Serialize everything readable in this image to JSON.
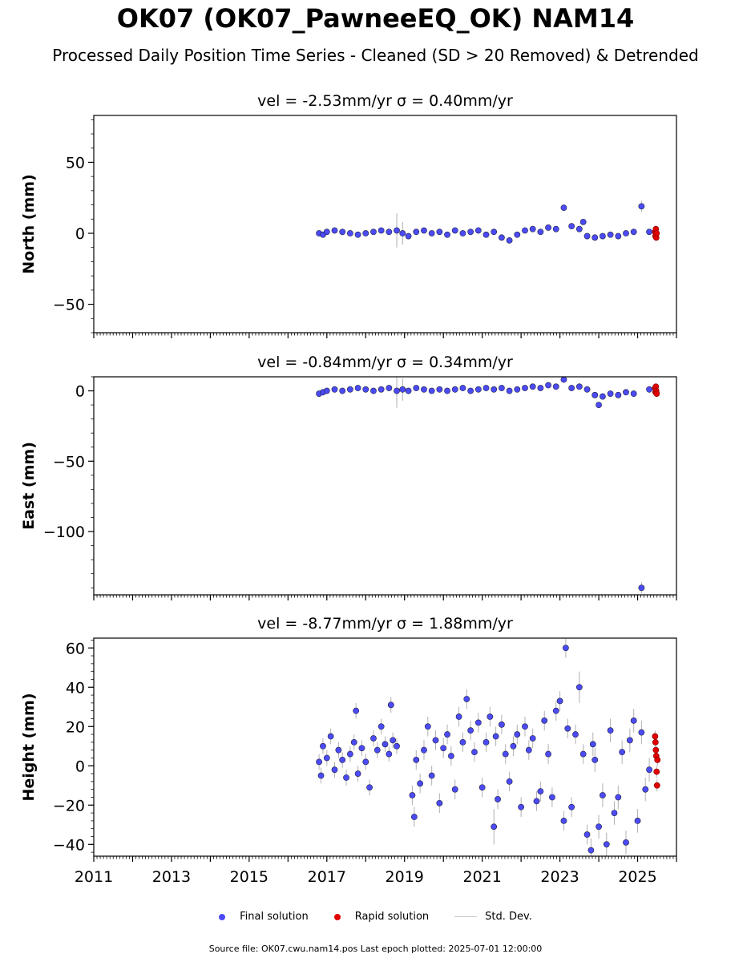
{
  "figure": {
    "title": "OK07 (OK07_PawneeEQ_OK) NAM14",
    "subtitle": "Processed Daily Position Time Series - Cleaned (SD > 20 Removed) & Detrended",
    "footer": "Source file: OK07.cwu.nam14.pos  Last epoch plotted: 2025-07-01 12:00:00"
  },
  "legend": {
    "items": [
      {
        "label": "Final solution",
        "color": "#4b4bf5",
        "kind": "dot"
      },
      {
        "label": "Rapid solution",
        "color": "#e00000",
        "kind": "dot"
      },
      {
        "label": "Std. Dev.",
        "color": "#c8c8c8",
        "kind": "line"
      }
    ]
  },
  "colors": {
    "final": "#4b4bf5",
    "final_edge": "#202040",
    "rapid": "#e00000",
    "errbar": "#b0b0b0"
  },
  "chart_data": [
    {
      "type": "scatter",
      "title": "vel = -2.53mm/yr   σ = 0.40mm/yr",
      "ylabel": "North (mm)",
      "xlim": [
        2011.0,
        2026.0
      ],
      "ylim": [
        -70,
        83
      ],
      "yticks": [
        -50,
        0,
        50
      ],
      "ytick_labels": [
        "−50",
        "0",
        "50"
      ],
      "xticks": [],
      "xtick_labels": [],
      "series": [
        {
          "name": "Final solution",
          "role": "final",
          "x": [
            2016.8,
            2016.9,
            2017.0,
            2017.2,
            2017.4,
            2017.6,
            2017.8,
            2018.0,
            2018.2,
            2018.4,
            2018.6,
            2018.8,
            2018.95,
            2019.1,
            2019.3,
            2019.5,
            2019.7,
            2019.9,
            2020.1,
            2020.3,
            2020.5,
            2020.7,
            2020.9,
            2021.1,
            2021.3,
            2021.5,
            2021.7,
            2021.9,
            2022.1,
            2022.3,
            2022.5,
            2022.7,
            2022.9,
            2023.1,
            2023.3,
            2023.5,
            2023.6,
            2023.7,
            2023.9,
            2024.1,
            2024.3,
            2024.5,
            2024.7,
            2024.9,
            2025.1,
            2025.3
          ],
          "y": [
            0,
            -1,
            1,
            2,
            1,
            0,
            -1,
            0,
            1,
            2,
            1,
            2,
            0,
            -2,
            1,
            2,
            0,
            1,
            -1,
            2,
            0,
            1,
            2,
            -1,
            1,
            -3,
            -5,
            -1,
            2,
            3,
            1,
            4,
            3,
            18,
            5,
            3,
            8,
            -2,
            -3,
            -2,
            -1,
            -2,
            0,
            1,
            19,
            1
          ],
          "err": [
            2,
            2,
            2,
            2,
            2,
            2,
            2,
            2,
            2,
            2,
            2,
            12,
            8,
            2,
            2,
            2,
            2,
            2,
            2,
            2,
            2,
            2,
            2,
            2,
            2,
            2,
            2,
            2,
            2,
            2,
            2,
            2,
            2,
            2,
            2,
            2,
            2,
            2,
            2,
            2,
            2,
            2,
            2,
            2,
            4,
            2
          ]
        },
        {
          "name": "Rapid solution",
          "role": "rapid",
          "x": [
            2025.45,
            2025.46,
            2025.47,
            2025.48,
            2025.49
          ],
          "y": [
            1,
            -2,
            3,
            -3,
            0
          ],
          "err": [
            2,
            2,
            2,
            2,
            2
          ]
        }
      ]
    },
    {
      "type": "scatter",
      "title": "vel = -0.84mm/yr   σ = 0.34mm/yr",
      "ylabel": "East (mm)",
      "xlim": [
        2011.0,
        2026.0
      ],
      "ylim": [
        -145,
        10
      ],
      "yticks": [
        -100,
        -50,
        0
      ],
      "ytick_labels": [
        "−100",
        "−50",
        "0"
      ],
      "xticks": [],
      "xtick_labels": [],
      "series": [
        {
          "name": "Final solution",
          "role": "final",
          "x": [
            2016.8,
            2016.9,
            2017.0,
            2017.2,
            2017.4,
            2017.6,
            2017.8,
            2018.0,
            2018.2,
            2018.4,
            2018.6,
            2018.8,
            2018.95,
            2019.1,
            2019.3,
            2019.5,
            2019.7,
            2019.9,
            2020.1,
            2020.3,
            2020.5,
            2020.7,
            2020.9,
            2021.1,
            2021.3,
            2021.5,
            2021.7,
            2021.9,
            2022.1,
            2022.3,
            2022.5,
            2022.7,
            2022.9,
            2023.1,
            2023.3,
            2023.5,
            2023.7,
            2023.9,
            2024.0,
            2024.1,
            2024.3,
            2024.5,
            2024.7,
            2024.9,
            2025.1,
            2025.3
          ],
          "y": [
            -2,
            -1,
            0,
            1,
            0,
            1,
            2,
            1,
            0,
            1,
            2,
            0,
            1,
            0,
            2,
            1,
            0,
            1,
            0,
            1,
            2,
            0,
            1,
            2,
            1,
            2,
            0,
            1,
            2,
            3,
            2,
            4,
            3,
            8,
            2,
            3,
            1,
            -3,
            -10,
            -4,
            -2,
            -3,
            -1,
            -2,
            -140,
            1
          ],
          "err": [
            2,
            2,
            2,
            2,
            2,
            2,
            2,
            2,
            2,
            2,
            2,
            12,
            8,
            2,
            2,
            2,
            2,
            2,
            2,
            2,
            2,
            2,
            2,
            2,
            2,
            2,
            2,
            2,
            2,
            2,
            2,
            2,
            2,
            2,
            2,
            2,
            2,
            2,
            2,
            2,
            2,
            2,
            2,
            2,
            4,
            2
          ]
        },
        {
          "name": "Rapid solution",
          "role": "rapid",
          "x": [
            2025.45,
            2025.46,
            2025.47,
            2025.48,
            2025.49
          ],
          "y": [
            2,
            -1,
            3,
            0,
            -2
          ],
          "err": [
            2,
            2,
            2,
            2,
            2
          ]
        }
      ]
    },
    {
      "type": "scatter",
      "title": "vel = -8.77mm/yr   σ = 1.88mm/yr",
      "ylabel": "Height (mm)",
      "xlim": [
        2011.0,
        2026.0
      ],
      "ylim": [
        -46,
        65
      ],
      "yticks": [
        -40,
        -20,
        0,
        20,
        40,
        60
      ],
      "ytick_labels": [
        "−40",
        "−20",
        "0",
        "20",
        "40",
        "60"
      ],
      "xticks": [
        2011,
        2013,
        2015,
        2017,
        2019,
        2021,
        2023,
        2025
      ],
      "xtick_labels": [
        "2011",
        "2013",
        "2015",
        "2017",
        "2019",
        "2021",
        "2023",
        "2025"
      ],
      "series": [
        {
          "name": "Final solution",
          "role": "final",
          "x": [
            2016.8,
            2016.85,
            2016.9,
            2017.0,
            2017.1,
            2017.2,
            2017.3,
            2017.4,
            2017.5,
            2017.6,
            2017.7,
            2017.75,
            2017.8,
            2017.9,
            2018.0,
            2018.1,
            2018.2,
            2018.3,
            2018.4,
            2018.5,
            2018.6,
            2018.65,
            2018.7,
            2018.8,
            2019.2,
            2019.25,
            2019.3,
            2019.4,
            2019.5,
            2019.6,
            2019.7,
            2019.8,
            2019.9,
            2020.0,
            2020.1,
            2020.2,
            2020.3,
            2020.4,
            2020.5,
            2020.6,
            2020.7,
            2020.8,
            2020.9,
            2021.0,
            2021.1,
            2021.2,
            2021.3,
            2021.35,
            2021.4,
            2021.5,
            2021.6,
            2021.7,
            2021.8,
            2021.9,
            2022.0,
            2022.1,
            2022.2,
            2022.3,
            2022.4,
            2022.5,
            2022.6,
            2022.7,
            2022.8,
            2022.9,
            2023.0,
            2023.1,
            2023.15,
            2023.2,
            2023.3,
            2023.4,
            2023.5,
            2023.6,
            2023.7,
            2023.8,
            2023.85,
            2023.9,
            2024.0,
            2024.1,
            2024.2,
            2024.3,
            2024.4,
            2024.5,
            2024.6,
            2024.7,
            2024.8,
            2024.9,
            2025.0,
            2025.1,
            2025.2,
            2025.3
          ],
          "y": [
            2,
            -5,
            10,
            4,
            15,
            -2,
            8,
            3,
            -6,
            6,
            12,
            28,
            -4,
            9,
            2,
            -11,
            14,
            8,
            20,
            11,
            6,
            31,
            13,
            10,
            -15,
            -26,
            3,
            -9,
            8,
            20,
            -5,
            13,
            -19,
            9,
            16,
            5,
            -12,
            25,
            12,
            34,
            18,
            7,
            22,
            -11,
            12,
            25,
            -31,
            15,
            -17,
            21,
            6,
            -8,
            10,
            16,
            -21,
            20,
            8,
            14,
            -18,
            -13,
            23,
            6,
            -16,
            28,
            33,
            -28,
            60,
            19,
            -21,
            16,
            40,
            6,
            -35,
            -43,
            11,
            3,
            -31,
            -15,
            -40,
            18,
            -24,
            -16,
            7,
            -39,
            13,
            23,
            -28,
            17,
            -12,
            -2
          ],
          "err": [
            4,
            4,
            4,
            4,
            4,
            4,
            4,
            4,
            4,
            4,
            4,
            4,
            4,
            4,
            4,
            4,
            4,
            4,
            4,
            4,
            4,
            4,
            4,
            4,
            5,
            5,
            5,
            5,
            5,
            5,
            5,
            5,
            5,
            5,
            5,
            5,
            5,
            5,
            5,
            5,
            5,
            5,
            5,
            5,
            5,
            5,
            9,
            5,
            5,
            5,
            5,
            5,
            5,
            5,
            5,
            5,
            5,
            5,
            5,
            5,
            5,
            5,
            5,
            5,
            5,
            5,
            5,
            5,
            5,
            5,
            8,
            5,
            5,
            6,
            6,
            6,
            6,
            6,
            6,
            6,
            6,
            6,
            6,
            6,
            6,
            6,
            6,
            6,
            6,
            6
          ]
        },
        {
          "name": "Rapid solution",
          "role": "rapid",
          "x": [
            2025.45,
            2025.46,
            2025.47,
            2025.48,
            2025.49,
            2025.5,
            2025.51
          ],
          "y": [
            15,
            12,
            8,
            5,
            -3,
            -10,
            3
          ],
          "err": [
            3,
            3,
            3,
            3,
            3,
            3,
            3
          ]
        }
      ]
    }
  ]
}
